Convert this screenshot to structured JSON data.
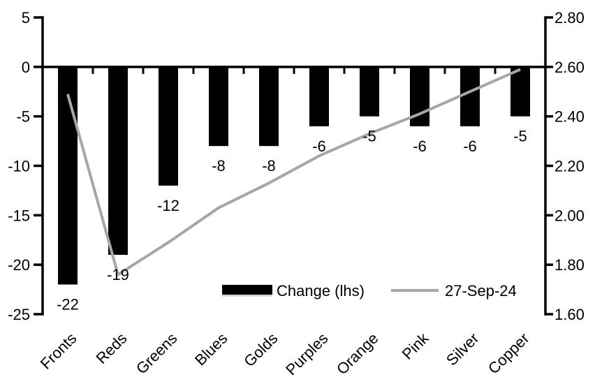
{
  "chart_data": {
    "type": "bar",
    "subtype": "bar+line combo, dual axis",
    "title": "",
    "categories": [
      "Fronts",
      "Reds",
      "Greens",
      "Blues",
      "Golds",
      "Purples",
      "Orange",
      "Pink",
      "Silver",
      "Copper"
    ],
    "series": [
      {
        "name": "Change (lhs)",
        "type": "bar",
        "axis": "left",
        "color": "#000000",
        "values": [
          -22,
          -19,
          -12,
          -8,
          -8,
          -6,
          -5,
          -6,
          -6,
          -5
        ],
        "data_labels": [
          "-22",
          "-19",
          "-12",
          "-8",
          "-8",
          "-6",
          "-5",
          "-6",
          "-6",
          "-5"
        ]
      },
      {
        "name": "27-Sep-24",
        "type": "line",
        "axis": "right",
        "color": "#a6a6a6",
        "values": [
          2.49,
          1.76,
          1.89,
          2.03,
          2.13,
          2.24,
          2.33,
          2.41,
          2.5,
          2.59
        ]
      }
    ],
    "left_axis": {
      "min": -25,
      "max": 5,
      "step": 5,
      "tick_labels": [
        "5",
        "0",
        "-5",
        "-10",
        "-15",
        "-20",
        "-25"
      ]
    },
    "right_axis": {
      "min": 1.6,
      "max": 2.8,
      "step": 0.2,
      "tick_labels": [
        "2.80",
        "2.60",
        "2.40",
        "2.20",
        "2.00",
        "1.80",
        "1.60"
      ]
    },
    "legend": {
      "position": "inside-bottom",
      "entries": [
        "Change (lhs)",
        "27-Sep-24"
      ]
    },
    "grid": false,
    "background": "#ffffff",
    "axis_color": "#000000",
    "text_color": "#000000"
  }
}
